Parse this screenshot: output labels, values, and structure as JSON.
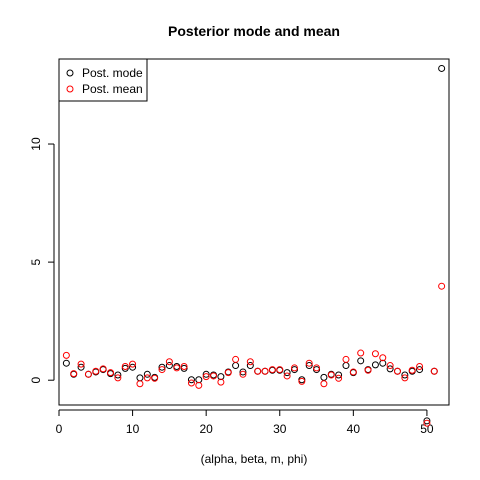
{
  "chart_data": {
    "type": "scatter",
    "title": "Posterior mode and mean",
    "xlabel": "(alpha, beta, m, phi)",
    "ylabel": "",
    "xlim": [
      0,
      53
    ],
    "ylim": [
      -1.05,
      13.6
    ],
    "x_ticks": [
      "0",
      "10",
      "20",
      "30",
      "40",
      "50"
    ],
    "y_ticks": [
      "0",
      "5",
      "10"
    ],
    "legend_position": "top-left",
    "grid": false,
    "series": [
      {
        "name": "Post. mode",
        "color": "#000000",
        "marker": "open-circle",
        "values": [
          [
            1,
            0.72
          ],
          [
            2,
            0.25
          ],
          [
            3,
            0.55
          ],
          [
            4,
            0.25
          ],
          [
            5,
            0.35
          ],
          [
            6,
            0.45
          ],
          [
            7,
            0.28
          ],
          [
            8,
            0.22
          ],
          [
            9,
            0.5
          ],
          [
            10,
            0.55
          ],
          [
            11,
            0.1
          ],
          [
            12,
            0.25
          ],
          [
            13,
            0.12
          ],
          [
            14,
            0.55
          ],
          [
            15,
            0.62
          ],
          [
            16,
            0.58
          ],
          [
            17,
            0.5
          ],
          [
            18,
            0.02
          ],
          [
            19,
            0.02
          ],
          [
            20,
            0.25
          ],
          [
            21,
            0.22
          ],
          [
            22,
            0.15
          ],
          [
            23,
            0.35
          ],
          [
            24,
            0.62
          ],
          [
            25,
            0.35
          ],
          [
            26,
            0.62
          ],
          [
            27,
            0.38
          ],
          [
            28,
            0.38
          ],
          [
            29,
            0.42
          ],
          [
            30,
            0.42
          ],
          [
            31,
            0.32
          ],
          [
            32,
            0.45
          ],
          [
            33,
            0.02
          ],
          [
            34,
            0.62
          ],
          [
            35,
            0.45
          ],
          [
            36,
            0.12
          ],
          [
            37,
            0.25
          ],
          [
            38,
            0.22
          ],
          [
            39,
            0.62
          ],
          [
            40,
            0.32
          ],
          [
            41,
            0.82
          ],
          [
            42,
            0.45
          ],
          [
            43,
            0.65
          ],
          [
            44,
            0.72
          ],
          [
            45,
            0.48
          ],
          [
            46,
            0.38
          ],
          [
            47,
            0.22
          ],
          [
            48,
            0.38
          ],
          [
            49,
            0.45
          ],
          [
            50,
            -1.72
          ],
          [
            51,
            0.38
          ],
          [
            52,
            13.2
          ]
        ]
      },
      {
        "name": "Post. mean",
        "color": "#ff0000",
        "marker": "open-circle",
        "values": [
          [
            1,
            1.05
          ],
          [
            2,
            0.28
          ],
          [
            3,
            0.68
          ],
          [
            4,
            0.25
          ],
          [
            5,
            0.38
          ],
          [
            6,
            0.48
          ],
          [
            7,
            0.32
          ],
          [
            8,
            0.1
          ],
          [
            9,
            0.58
          ],
          [
            10,
            0.68
          ],
          [
            11,
            -0.15
          ],
          [
            12,
            0.1
          ],
          [
            13,
            0.08
          ],
          [
            14,
            0.45
          ],
          [
            15,
            0.78
          ],
          [
            16,
            0.52
          ],
          [
            17,
            0.58
          ],
          [
            18,
            -0.12
          ],
          [
            19,
            -0.22
          ],
          [
            20,
            0.15
          ],
          [
            21,
            0.18
          ],
          [
            22,
            -0.08
          ],
          [
            23,
            0.32
          ],
          [
            24,
            0.88
          ],
          [
            25,
            0.25
          ],
          [
            26,
            0.78
          ],
          [
            27,
            0.38
          ],
          [
            28,
            0.38
          ],
          [
            29,
            0.45
          ],
          [
            30,
            0.45
          ],
          [
            31,
            0.18
          ],
          [
            32,
            0.52
          ],
          [
            33,
            -0.05
          ],
          [
            34,
            0.72
          ],
          [
            35,
            0.52
          ],
          [
            36,
            -0.15
          ],
          [
            37,
            0.22
          ],
          [
            38,
            0.08
          ],
          [
            39,
            0.88
          ],
          [
            40,
            0.35
          ],
          [
            41,
            1.15
          ],
          [
            42,
            0.42
          ],
          [
            43,
            1.12
          ],
          [
            44,
            0.95
          ],
          [
            45,
            0.62
          ],
          [
            46,
            0.38
          ],
          [
            47,
            0.1
          ],
          [
            48,
            0.42
          ],
          [
            49,
            0.58
          ],
          [
            50,
            -1.82
          ],
          [
            51,
            0.38
          ],
          [
            52,
            3.98
          ]
        ]
      }
    ]
  }
}
